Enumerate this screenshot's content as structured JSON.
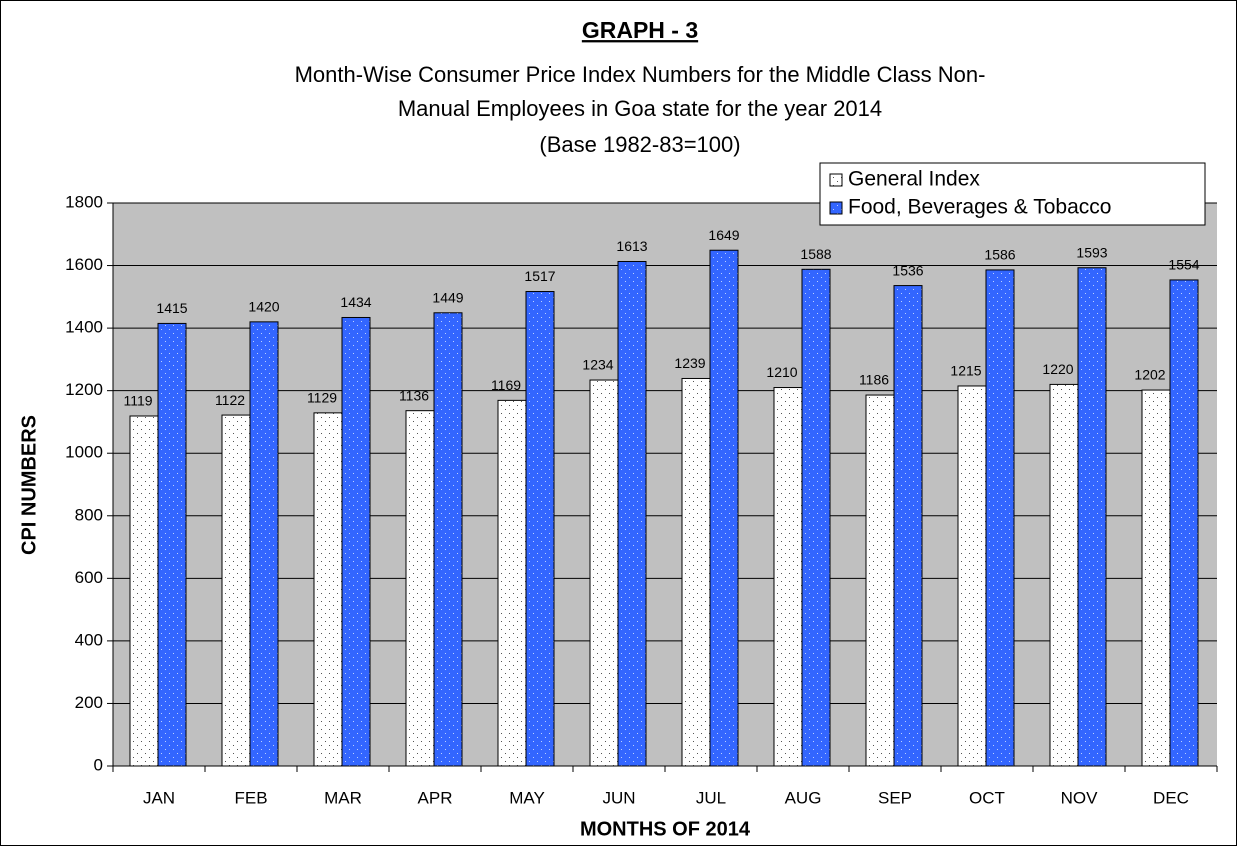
{
  "chart_data": {
    "type": "bar",
    "title": "GRAPH - 3",
    "subtitle": [
      "Month-Wise Consumer Price Index Numbers for the Middle Class Non-",
      "Manual Employees in Goa state for the year 2014",
      "(Base 1982-83=100)"
    ],
    "x_label": "MONTHS OF 2014",
    "y_label": "CPI NUMBERS",
    "categories": [
      "JAN",
      "FEB",
      "MAR",
      "APR",
      "MAY",
      "JUN",
      "JUL",
      "AUG",
      "SEP",
      "OCT",
      "NOV",
      "DEC"
    ],
    "series": [
      {
        "name": "General Index",
        "color": "#ffffff",
        "values": [
          1119,
          1122,
          1129,
          1136,
          1169,
          1234,
          1239,
          1210,
          1186,
          1215,
          1220,
          1202
        ]
      },
      {
        "name": "Food, Beverages & Tobacco",
        "color": "#3366ff",
        "values": [
          1415,
          1420,
          1434,
          1449,
          1517,
          1613,
          1649,
          1588,
          1536,
          1586,
          1593,
          1554
        ]
      }
    ],
    "ylim": [
      0,
      1800
    ],
    "yticks": [
      0,
      200,
      400,
      600,
      800,
      1000,
      1200,
      1400,
      1600,
      1800
    ],
    "grid": true,
    "legend": "top-right"
  }
}
